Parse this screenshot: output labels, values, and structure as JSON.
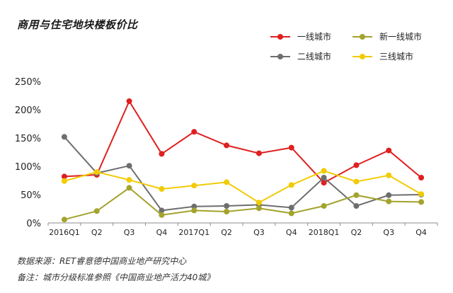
{
  "chart_data": {
    "type": "line",
    "title": "商用与住宅地块楼板价比",
    "categories": [
      "2016Q1",
      "Q2",
      "Q3",
      "Q4",
      "2017Q1",
      "Q2",
      "Q3",
      "Q4",
      "2018Q1",
      "Q2",
      "Q3",
      "Q4"
    ],
    "y_ticks": [
      "0%",
      "50%",
      "100%",
      "150%",
      "200%",
      "250%"
    ],
    "ylim": [
      0,
      250
    ],
    "grid": false,
    "legend_position": "top-right",
    "series": [
      {
        "name": "一线城市",
        "color": "#e01f1f",
        "values": [
          82,
          85,
          215,
          122,
          161,
          137,
          123,
          133,
          71,
          102,
          128,
          80
        ]
      },
      {
        "name": "二线城市",
        "color": "#6e6e6e",
        "values": [
          152,
          88,
          101,
          22,
          29,
          30,
          32,
          27,
          80,
          30,
          49,
          50
        ]
      },
      {
        "name": "新一线城市",
        "color": "#a3a32d",
        "values": [
          6,
          21,
          62,
          14,
          22,
          20,
          26,
          17,
          30,
          49,
          38,
          37
        ]
      },
      {
        "name": "三线城市",
        "color": "#f2cb05",
        "values": [
          74,
          90,
          76,
          60,
          66,
          72,
          36,
          67,
          92,
          73,
          84,
          51
        ]
      }
    ]
  },
  "footer": {
    "source": "数据来源：RET睿意德中国商业地产研究中心",
    "note": "备注：城市分级标准参照《中国商业地产活力40城》"
  }
}
